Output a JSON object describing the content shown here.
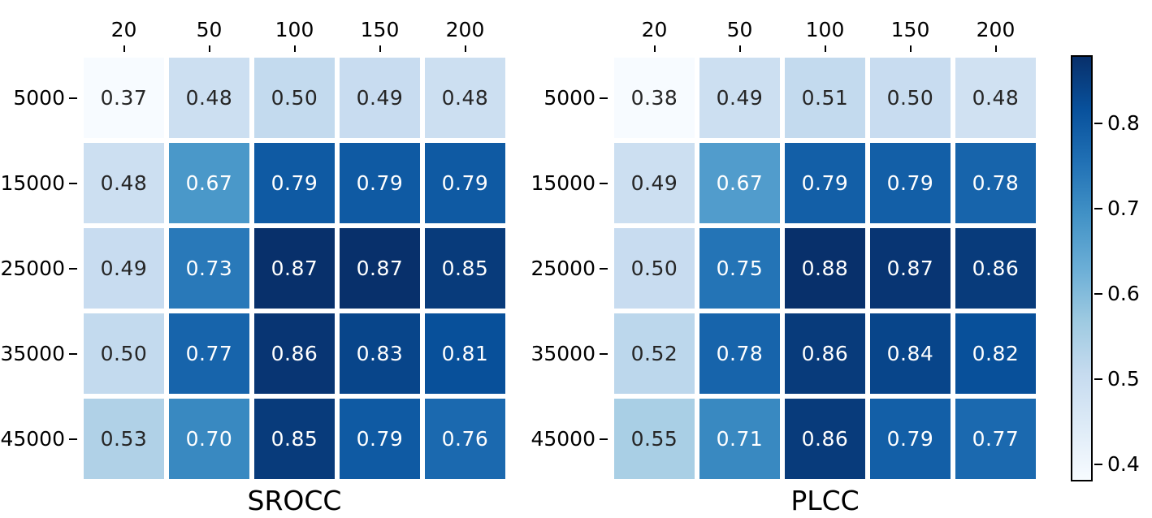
{
  "figure": {
    "background": "#ffffff"
  },
  "chart_data": [
    {
      "type": "heatmap",
      "title": "SROCC",
      "x_ticks": [
        "20",
        "50",
        "100",
        "150",
        "200"
      ],
      "y_ticks": [
        "5000",
        "15000",
        "25000",
        "35000",
        "45000"
      ],
      "values": [
        [
          0.37,
          0.48,
          0.5,
          0.49,
          0.48
        ],
        [
          0.48,
          0.67,
          0.79,
          0.79,
          0.79
        ],
        [
          0.49,
          0.73,
          0.87,
          0.87,
          0.85
        ],
        [
          0.5,
          0.77,
          0.86,
          0.83,
          0.81
        ],
        [
          0.53,
          0.7,
          0.85,
          0.79,
          0.76
        ]
      ],
      "vmin": 0.37,
      "vmax": 0.87,
      "value_decimals": 2,
      "grid_gaps": true,
      "legend_position": "shared-colorbar-right"
    },
    {
      "type": "heatmap",
      "title": "PLCC",
      "x_ticks": [
        "20",
        "50",
        "100",
        "150",
        "200"
      ],
      "y_ticks": [
        "5000",
        "15000",
        "25000",
        "35000",
        "45000"
      ],
      "values": [
        [
          0.38,
          0.49,
          0.51,
          0.5,
          0.48
        ],
        [
          0.49,
          0.67,
          0.79,
          0.79,
          0.78
        ],
        [
          0.5,
          0.75,
          0.88,
          0.87,
          0.86
        ],
        [
          0.52,
          0.78,
          0.86,
          0.84,
          0.82
        ],
        [
          0.55,
          0.71,
          0.86,
          0.79,
          0.77
        ]
      ],
      "vmin": 0.38,
      "vmax": 0.88,
      "value_decimals": 2,
      "grid_gaps": true,
      "legend_position": "shared-colorbar-right"
    }
  ],
  "colorbar": {
    "tick_labels": [
      "0.8",
      "0.7",
      "0.6",
      "0.5",
      "0.4"
    ],
    "vmin": 0.38,
    "vmax": 0.88
  },
  "colors": {
    "colormap_name": "Blues",
    "colormap_stops": [
      "#f7fbff",
      "#deebf7",
      "#c6dbef",
      "#9ecae1",
      "#6baed6",
      "#4292c6",
      "#2171b5",
      "#08519c",
      "#08306b"
    ],
    "annotation_dark_text": "#262626",
    "annotation_light_text": "#ffffff",
    "axis_text": "#000000",
    "cell_gap": "#ffffff"
  }
}
